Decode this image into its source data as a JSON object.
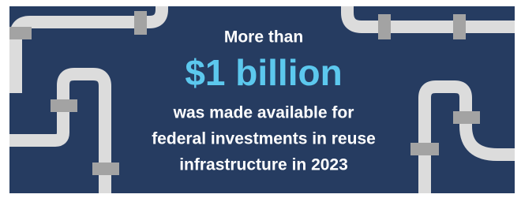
{
  "headline": {
    "lead": "More than",
    "amount": "$1 billion",
    "body": [
      "was made available for",
      "federal investments in reuse",
      "infrastructure in 2023"
    ]
  }
}
